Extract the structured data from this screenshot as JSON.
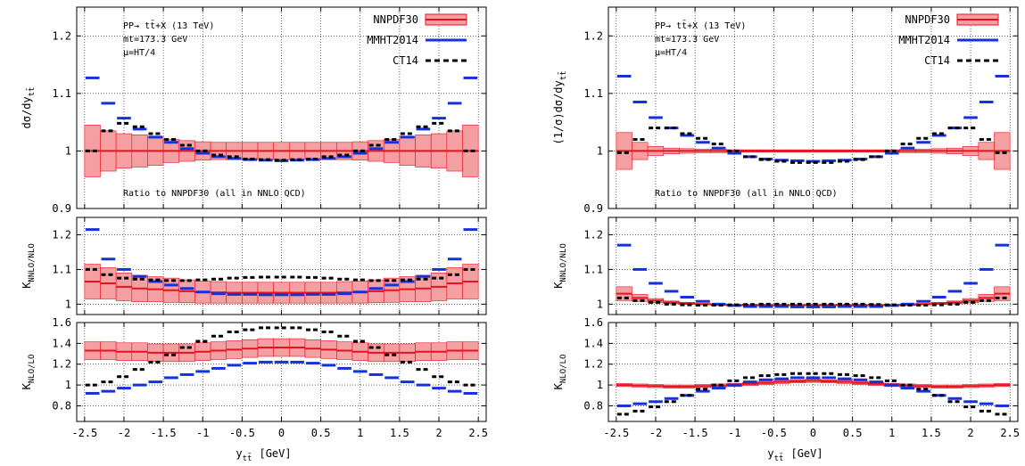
{
  "chart_data": [
    {
      "type": "line",
      "panel": "left-top",
      "ylabel": "dσ/dy",
      "ylabel_sub": "tt̄",
      "ylim": [
        0.9,
        1.25
      ],
      "yticks": [
        "0.9",
        "1",
        "1.1",
        "1.2"
      ],
      "grid": true,
      "annotation_lines": [
        "PP→ tt̄+X (13 TeV)",
        "mt=173.3 GeV",
        "μ=HT/4"
      ],
      "ratio_note": "Ratio to NNPDF30 (all in NNLO QCD)",
      "x_bin_edges": [
        -2.5,
        -2.3,
        -2.1,
        -1.9,
        -1.7,
        -1.5,
        -1.3,
        -1.1,
        -0.9,
        -0.7,
        -0.5,
        -0.3,
        -0.1,
        0.1,
        0.3,
        0.5,
        0.7,
        0.9,
        1.1,
        1.3,
        1.5,
        1.7,
        1.9,
        2.1,
        2.3,
        2.5
      ],
      "series": [
        {
          "name": "NNPDF30",
          "values": [
            1,
            1,
            1,
            1,
            1,
            1,
            1,
            1,
            1,
            1,
            1,
            1,
            1,
            1,
            1,
            1,
            1,
            1,
            1,
            1,
            1,
            1,
            1,
            1,
            1
          ],
          "band_half": [
            0.045,
            0.035,
            0.03,
            0.028,
            0.025,
            0.02,
            0.018,
            0.016,
            0.015,
            0.015,
            0.015,
            0.015,
            0.015,
            0.015,
            0.015,
            0.015,
            0.015,
            0.016,
            0.018,
            0.02,
            0.025,
            0.028,
            0.03,
            0.035,
            0.045
          ]
        },
        {
          "name": "MMHT2014",
          "values": [
            1.127,
            1.083,
            1.057,
            1.038,
            1.024,
            1.015,
            1.004,
            0.996,
            0.99,
            0.987,
            0.985,
            0.984,
            0.983,
            0.984,
            0.985,
            0.987,
            0.99,
            0.996,
            1.004,
            1.015,
            1.024,
            1.038,
            1.057,
            1.083,
            1.127
          ]
        },
        {
          "name": "CT14",
          "values": [
            1.0,
            1.035,
            1.048,
            1.042,
            1.03,
            1.02,
            1.01,
            1.0,
            0.993,
            0.99,
            0.986,
            0.985,
            0.984,
            0.985,
            0.986,
            0.99,
            0.993,
            1.0,
            1.01,
            1.02,
            1.03,
            1.042,
            1.048,
            1.035,
            1.0
          ]
        }
      ]
    },
    {
      "type": "line",
      "panel": "left-middle",
      "ylabel": "K",
      "ylabel_sub": "NNLO/NLO",
      "ylim": [
        0.97,
        1.25
      ],
      "yticks": [
        "1",
        "1.1",
        "1.2"
      ],
      "grid": true,
      "x_bin_edges": [
        -2.5,
        -2.3,
        -2.1,
        -1.9,
        -1.7,
        -1.5,
        -1.3,
        -1.1,
        -0.9,
        -0.7,
        -0.5,
        -0.3,
        -0.1,
        0.1,
        0.3,
        0.5,
        0.7,
        0.9,
        1.1,
        1.3,
        1.5,
        1.7,
        1.9,
        2.1,
        2.3,
        2.5
      ],
      "series": [
        {
          "name": "NNPDF30",
          "values": [
            1.065,
            1.06,
            1.05,
            1.045,
            1.043,
            1.04,
            1.037,
            1.035,
            1.034,
            1.033,
            1.033,
            1.033,
            1.033,
            1.033,
            1.033,
            1.033,
            1.034,
            1.035,
            1.037,
            1.04,
            1.043,
            1.045,
            1.05,
            1.06,
            1.065
          ],
          "band_half": [
            0.05,
            0.045,
            0.04,
            0.038,
            0.036,
            0.035,
            0.033,
            0.032,
            0.031,
            0.03,
            0.03,
            0.03,
            0.03,
            0.03,
            0.03,
            0.03,
            0.031,
            0.032,
            0.033,
            0.035,
            0.036,
            0.038,
            0.04,
            0.045,
            0.05
          ]
        },
        {
          "name": "MMHT2014",
          "values": [
            1.215,
            1.13,
            1.1,
            1.08,
            1.065,
            1.055,
            1.045,
            1.035,
            1.03,
            1.028,
            1.028,
            1.027,
            1.027,
            1.027,
            1.028,
            1.028,
            1.03,
            1.035,
            1.045,
            1.055,
            1.065,
            1.08,
            1.1,
            1.13,
            1.215
          ]
        },
        {
          "name": "CT14",
          "values": [
            1.1,
            1.085,
            1.075,
            1.072,
            1.07,
            1.068,
            1.068,
            1.07,
            1.072,
            1.075,
            1.077,
            1.078,
            1.078,
            1.078,
            1.077,
            1.075,
            1.072,
            1.07,
            1.068,
            1.068,
            1.07,
            1.072,
            1.075,
            1.085,
            1.1
          ]
        }
      ]
    },
    {
      "type": "line",
      "panel": "left-bottom",
      "ylabel": "K",
      "ylabel_sub": "NLO/LO",
      "ylim": [
        0.65,
        1.6
      ],
      "yticks": [
        "0.8",
        "1",
        "1.2",
        "1.4",
        "1.6"
      ],
      "grid": true,
      "xlabel": "y",
      "xlabel_sub": "tt̄",
      "xlabel_unit": "[GeV]",
      "xticks": [
        "-2.5",
        "-2",
        "-1.5",
        "-1",
        "-0.5",
        "0",
        "0.5",
        "1",
        "1.5",
        "2",
        "2.5"
      ],
      "x_bin_edges": [
        -2.5,
        -2.3,
        -2.1,
        -1.9,
        -1.7,
        -1.5,
        -1.3,
        -1.1,
        -0.9,
        -0.7,
        -0.5,
        -0.3,
        -0.1,
        0.1,
        0.3,
        0.5,
        0.7,
        0.9,
        1.1,
        1.3,
        1.5,
        1.7,
        1.9,
        2.1,
        2.3,
        2.5
      ],
      "series": [
        {
          "name": "NNPDF30",
          "values": [
            1.33,
            1.33,
            1.32,
            1.32,
            1.31,
            1.31,
            1.31,
            1.32,
            1.33,
            1.34,
            1.35,
            1.36,
            1.36,
            1.36,
            1.35,
            1.34,
            1.33,
            1.32,
            1.31,
            1.31,
            1.31,
            1.32,
            1.32,
            1.33,
            1.33
          ],
          "band_half": [
            0.085,
            0.085,
            0.085,
            0.085,
            0.085,
            0.085,
            0.085,
            0.085,
            0.085,
            0.085,
            0.085,
            0.085,
            0.085,
            0.085,
            0.085,
            0.085,
            0.085,
            0.085,
            0.085,
            0.085,
            0.085,
            0.085,
            0.085,
            0.085,
            0.085
          ]
        },
        {
          "name": "MMHT2014",
          "values": [
            0.92,
            0.94,
            0.97,
            1.0,
            1.03,
            1.07,
            1.1,
            1.13,
            1.16,
            1.19,
            1.21,
            1.22,
            1.22,
            1.22,
            1.21,
            1.19,
            1.16,
            1.13,
            1.1,
            1.07,
            1.03,
            1.0,
            0.97,
            0.94,
            0.92
          ]
        },
        {
          "name": "CT14",
          "values": [
            1.0,
            1.03,
            1.08,
            1.15,
            1.22,
            1.29,
            1.36,
            1.42,
            1.47,
            1.51,
            1.53,
            1.55,
            1.55,
            1.55,
            1.53,
            1.51,
            1.47,
            1.42,
            1.36,
            1.29,
            1.22,
            1.15,
            1.08,
            1.03,
            1.0
          ]
        }
      ]
    },
    {
      "type": "line",
      "panel": "right-top",
      "ylabel": "(1/σ)dσ/dy",
      "ylabel_sub": "tt̄",
      "ylim": [
        0.9,
        1.25
      ],
      "yticks": [
        "0.9",
        "1",
        "1.1",
        "1.2"
      ],
      "grid": true,
      "annotation_lines": [
        "PP→ tt̄+X (13 TeV)",
        "mt=173.3 GeV",
        "μ=HT/4"
      ],
      "ratio_note": "Ratio to NNPDF30 (all in NNLO QCD)",
      "x_bin_edges": [
        -2.5,
        -2.3,
        -2.1,
        -1.9,
        -1.7,
        -1.5,
        -1.3,
        -1.1,
        -0.9,
        -0.7,
        -0.5,
        -0.3,
        -0.1,
        0.1,
        0.3,
        0.5,
        0.7,
        0.9,
        1.1,
        1.3,
        1.5,
        1.7,
        1.9,
        2.1,
        2.3,
        2.5
      ],
      "series": [
        {
          "name": "NNPDF30",
          "values": [
            1,
            1,
            1,
            1,
            1,
            1,
            1,
            1,
            1,
            1,
            1,
            1,
            1,
            1,
            1,
            1,
            1,
            1,
            1,
            1,
            1,
            1,
            1,
            1,
            1
          ],
          "band_half": [
            0.032,
            0.015,
            0.008,
            0.005,
            0.004,
            0.003,
            0.003,
            0.002,
            0.002,
            0.002,
            0.002,
            0.002,
            0.002,
            0.002,
            0.002,
            0.002,
            0.002,
            0.002,
            0.003,
            0.003,
            0.004,
            0.005,
            0.008,
            0.015,
            0.032
          ]
        },
        {
          "name": "MMHT2014",
          "values": [
            1.13,
            1.085,
            1.058,
            1.04,
            1.027,
            1.015,
            1.005,
            0.996,
            0.99,
            0.986,
            0.984,
            0.983,
            0.982,
            0.983,
            0.984,
            0.986,
            0.99,
            0.996,
            1.005,
            1.015,
            1.027,
            1.04,
            1.058,
            1.085,
            1.13
          ]
        },
        {
          "name": "CT14",
          "values": [
            0.997,
            1.02,
            1.04,
            1.04,
            1.03,
            1.022,
            1.012,
            1.0,
            0.99,
            0.985,
            0.982,
            0.98,
            0.98,
            0.98,
            0.982,
            0.985,
            0.99,
            1.0,
            1.012,
            1.022,
            1.03,
            1.04,
            1.04,
            1.02,
            0.997
          ]
        }
      ]
    },
    {
      "type": "line",
      "panel": "right-middle",
      "ylabel": "K",
      "ylabel_sub": "NNLO/NLO",
      "ylim": [
        0.97,
        1.25
      ],
      "yticks": [
        "1",
        "1.1",
        "1.2"
      ],
      "grid": true,
      "x_bin_edges": [
        -2.5,
        -2.3,
        -2.1,
        -1.9,
        -1.7,
        -1.5,
        -1.3,
        -1.1,
        -0.9,
        -0.7,
        -0.5,
        -0.3,
        -0.1,
        0.1,
        0.3,
        0.5,
        0.7,
        0.9,
        1.1,
        1.3,
        1.5,
        1.7,
        1.9,
        2.1,
        2.3,
        2.5
      ],
      "series": [
        {
          "name": "NNPDF30",
          "values": [
            1.03,
            1.018,
            1.01,
            1.005,
            1.002,
            1.0,
            0.998,
            0.997,
            0.997,
            0.997,
            0.997,
            0.997,
            0.997,
            0.997,
            0.997,
            0.997,
            0.997,
            0.997,
            0.998,
            1.0,
            1.002,
            1.005,
            1.01,
            1.018,
            1.03
          ],
          "band_half": [
            0.02,
            0.01,
            0.006,
            0.004,
            0.003,
            0.002,
            0.002,
            0.002,
            0.002,
            0.002,
            0.002,
            0.002,
            0.002,
            0.002,
            0.002,
            0.002,
            0.002,
            0.002,
            0.002,
            0.002,
            0.003,
            0.004,
            0.006,
            0.01,
            0.02
          ]
        },
        {
          "name": "MMHT2014",
          "values": [
            1.17,
            1.1,
            1.06,
            1.037,
            1.02,
            1.008,
            1.0,
            0.996,
            0.993,
            0.993,
            0.993,
            0.992,
            0.992,
            0.992,
            0.993,
            0.993,
            0.993,
            0.996,
            1.0,
            1.008,
            1.02,
            1.037,
            1.06,
            1.1,
            1.17
          ]
        },
        {
          "name": "CT14",
          "values": [
            1.018,
            1.01,
            1.005,
            1.0,
            0.998,
            0.997,
            0.997,
            0.998,
            0.999,
            1.0,
            1.0,
            1.0,
            1.0,
            1.0,
            1.0,
            1.0,
            0.999,
            0.998,
            0.997,
            0.997,
            0.998,
            1.0,
            1.005,
            1.01,
            1.018
          ]
        }
      ]
    },
    {
      "type": "line",
      "panel": "right-bottom",
      "ylabel": "K",
      "ylabel_sub": "NLO/LO",
      "ylim": [
        0.65,
        1.6
      ],
      "yticks": [
        "0.8",
        "1",
        "1.2",
        "1.4",
        "1.6"
      ],
      "grid": true,
      "xlabel": "y",
      "xlabel_sub": "tt̄",
      "xlabel_unit": "[GeV]",
      "xticks": [
        "-2.5",
        "-2",
        "-1.5",
        "-1",
        "-0.5",
        "0",
        "0.5",
        "1",
        "1.5",
        "2",
        "2.5"
      ],
      "x_bin_edges": [
        -2.5,
        -2.3,
        -2.1,
        -1.9,
        -1.7,
        -1.5,
        -1.3,
        -1.1,
        -0.9,
        -0.7,
        -0.5,
        -0.3,
        -0.1,
        0.1,
        0.3,
        0.5,
        0.7,
        0.9,
        1.1,
        1.3,
        1.5,
        1.7,
        1.9,
        2.1,
        2.3,
        2.5
      ],
      "series": [
        {
          "name": "NNPDF30",
          "values": [
            1.0,
            0.995,
            0.99,
            0.985,
            0.985,
            0.99,
            0.995,
            1.0,
            1.01,
            1.02,
            1.03,
            1.035,
            1.04,
            1.035,
            1.03,
            1.02,
            1.01,
            1.0,
            0.995,
            0.99,
            0.985,
            0.985,
            0.99,
            0.995,
            1.0
          ],
          "band_half": [
            0.015,
            0.015,
            0.015,
            0.015,
            0.015,
            0.015,
            0.015,
            0.015,
            0.015,
            0.015,
            0.015,
            0.015,
            0.015,
            0.015,
            0.015,
            0.015,
            0.015,
            0.015,
            0.015,
            0.015,
            0.015,
            0.015,
            0.015,
            0.015,
            0.015
          ]
        },
        {
          "name": "MMHT2014",
          "values": [
            0.8,
            0.82,
            0.84,
            0.87,
            0.9,
            0.94,
            0.97,
            1.0,
            1.03,
            1.05,
            1.06,
            1.07,
            1.07,
            1.07,
            1.06,
            1.05,
            1.03,
            1.0,
            0.97,
            0.94,
            0.9,
            0.87,
            0.84,
            0.82,
            0.8
          ]
        },
        {
          "name": "CT14",
          "values": [
            0.72,
            0.75,
            0.79,
            0.84,
            0.9,
            0.96,
            1.0,
            1.04,
            1.07,
            1.09,
            1.1,
            1.11,
            1.11,
            1.11,
            1.1,
            1.09,
            1.07,
            1.04,
            1.0,
            0.96,
            0.9,
            0.84,
            0.79,
            0.75,
            0.72
          ]
        }
      ]
    }
  ],
  "legend": [
    {
      "label": "NNPDF30",
      "style": "red-band"
    },
    {
      "label": "MMHT2014",
      "style": "blue-solid"
    },
    {
      "label": "CT14",
      "style": "black-dashed"
    }
  ],
  "colors": {
    "nnpdf_line": "#e8111f",
    "nnpdf_band": "#f4a0a3",
    "mmht": "#1432dc",
    "ct14": "#000000",
    "grid": "#000000"
  }
}
